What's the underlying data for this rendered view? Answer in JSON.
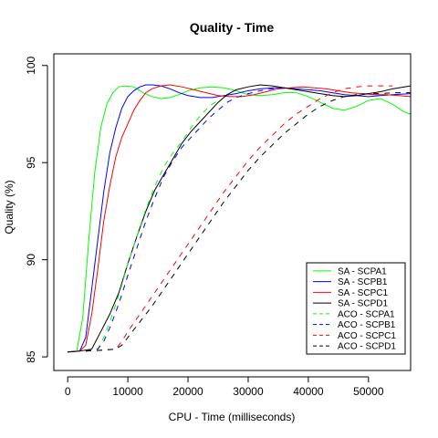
{
  "chart_data": {
    "type": "line",
    "title": "Quality - Time",
    "xlabel": "CPU - Time (milliseconds)",
    "ylabel": "Quality (%)",
    "xlim": [
      -2300,
      57000
    ],
    "ylim": [
      84.3,
      100.6
    ],
    "x_ticks": [
      0,
      10000,
      20000,
      30000,
      40000,
      50000
    ],
    "x_tick_labels": [
      "0",
      "10000",
      "20000",
      "30000",
      "40000",
      "50000"
    ],
    "y_ticks": [
      85,
      90,
      95,
      100
    ],
    "y_tick_labels": [
      "85",
      "90",
      "95",
      "100"
    ],
    "grid": false,
    "legend_position": "bottom-right",
    "series": [
      {
        "name": "SA - SCPA1",
        "color": "#00ff00",
        "dash": "solid",
        "points": [
          [
            0,
            85.25
          ],
          [
            1500,
            85.3
          ],
          [
            2500,
            87
          ],
          [
            3500,
            91
          ],
          [
            4500,
            94.5
          ],
          [
            5500,
            96.8
          ],
          [
            6500,
            98
          ],
          [
            7500,
            98.6
          ],
          [
            8500,
            98.9
          ],
          [
            9500,
            98.95
          ],
          [
            11000,
            98.9
          ],
          [
            12500,
            98.6
          ],
          [
            14000,
            98.4
          ],
          [
            15500,
            98.3
          ],
          [
            17000,
            98.35
          ],
          [
            18500,
            98.5
          ],
          [
            20000,
            98.7
          ],
          [
            22000,
            98.85
          ],
          [
            24000,
            98.9
          ],
          [
            26000,
            98.85
          ],
          [
            28000,
            98.7
          ],
          [
            30000,
            98.5
          ],
          [
            32000,
            98.45
          ],
          [
            34000,
            98.5
          ],
          [
            36000,
            98.6
          ],
          [
            38000,
            98.6
          ],
          [
            40000,
            98.4
          ],
          [
            42000,
            98.1
          ],
          [
            44000,
            97.8
          ],
          [
            46000,
            97.7
          ],
          [
            48000,
            97.9
          ],
          [
            50000,
            98.2
          ],
          [
            52000,
            98.3
          ],
          [
            54000,
            98.0
          ],
          [
            56000,
            97.6
          ],
          [
            57000,
            97.5
          ]
        ]
      },
      {
        "name": "SA - SCPB1",
        "color": "#0000ff",
        "dash": "solid",
        "points": [
          [
            0,
            85.25
          ],
          [
            2000,
            85.3
          ],
          [
            3000,
            86
          ],
          [
            4000,
            88.5
          ],
          [
            5000,
            91
          ],
          [
            6000,
            93.5
          ],
          [
            7000,
            95.5
          ],
          [
            8000,
            96.8
          ],
          [
            9000,
            97.8
          ],
          [
            10000,
            98.4
          ],
          [
            11000,
            98.7
          ],
          [
            12000,
            98.9
          ],
          [
            13000,
            99.0
          ],
          [
            14000,
            99.0
          ],
          [
            15500,
            98.95
          ],
          [
            17000,
            98.8
          ],
          [
            18500,
            98.6
          ],
          [
            20000,
            98.45
          ],
          [
            22000,
            98.35
          ],
          [
            24000,
            98.35
          ],
          [
            26000,
            98.45
          ],
          [
            28000,
            98.55
          ],
          [
            30000,
            98.7
          ],
          [
            32000,
            98.8
          ],
          [
            34000,
            98.85
          ],
          [
            36000,
            98.85
          ],
          [
            38000,
            98.8
          ],
          [
            40000,
            98.75
          ],
          [
            42000,
            98.7
          ],
          [
            44000,
            98.6
          ],
          [
            46000,
            98.5
          ],
          [
            48000,
            98.45
          ],
          [
            50000,
            98.4
          ],
          [
            52000,
            98.45
          ],
          [
            54000,
            98.5
          ],
          [
            57000,
            98.55
          ]
        ]
      },
      {
        "name": "SA - SCPC1",
        "color": "#ff0000",
        "dash": "solid",
        "points": [
          [
            0,
            85.25
          ],
          [
            2000,
            85.3
          ],
          [
            3000,
            85.6
          ],
          [
            4000,
            87.2
          ],
          [
            5000,
            89.5
          ],
          [
            6000,
            92
          ],
          [
            7000,
            93.8
          ],
          [
            8000,
            95.3
          ],
          [
            9000,
            96.3
          ],
          [
            10000,
            97.0
          ],
          [
            11000,
            97.7
          ],
          [
            12000,
            98.2
          ],
          [
            13000,
            98.6
          ],
          [
            14000,
            98.8
          ],
          [
            15500,
            98.95
          ],
          [
            17000,
            99.0
          ],
          [
            19000,
            98.9
          ],
          [
            21000,
            98.75
          ],
          [
            23000,
            98.6
          ],
          [
            25000,
            98.45
          ],
          [
            27000,
            98.4
          ],
          [
            29000,
            98.4
          ],
          [
            31000,
            98.5
          ],
          [
            33000,
            98.65
          ],
          [
            35000,
            98.8
          ],
          [
            37000,
            98.85
          ],
          [
            39000,
            98.9
          ],
          [
            41000,
            98.85
          ],
          [
            43000,
            98.8
          ],
          [
            45000,
            98.7
          ],
          [
            47000,
            98.6
          ],
          [
            49000,
            98.55
          ],
          [
            51000,
            98.5
          ],
          [
            53000,
            98.5
          ],
          [
            55000,
            98.45
          ],
          [
            57000,
            98.4
          ]
        ]
      },
      {
        "name": "SA - SCPD1",
        "color": "#000000",
        "dash": "solid",
        "points": [
          [
            0,
            85.25
          ],
          [
            2000,
            85.3
          ],
          [
            4000,
            85.4
          ],
          [
            5500,
            86.3
          ],
          [
            7000,
            87.2
          ],
          [
            8500,
            88.3
          ],
          [
            10000,
            89.8
          ],
          [
            11500,
            91.2
          ],
          [
            13000,
            92.5
          ],
          [
            14500,
            93.6
          ],
          [
            16000,
            94.4
          ],
          [
            17500,
            95.2
          ],
          [
            19000,
            96.0
          ],
          [
            20500,
            96.6
          ],
          [
            22000,
            97.1
          ],
          [
            23500,
            97.6
          ],
          [
            25000,
            98.1
          ],
          [
            26500,
            98.5
          ],
          [
            28000,
            98.75
          ],
          [
            30000,
            98.9
          ],
          [
            32000,
            99.0
          ],
          [
            34000,
            98.95
          ],
          [
            36000,
            98.85
          ],
          [
            38000,
            98.75
          ],
          [
            40000,
            98.65
          ],
          [
            42000,
            98.55
          ],
          [
            44000,
            98.45
          ],
          [
            46000,
            98.4
          ],
          [
            48000,
            98.45
          ],
          [
            50000,
            98.55
          ],
          [
            52000,
            98.65
          ],
          [
            54000,
            98.8
          ],
          [
            57000,
            98.95
          ]
        ]
      },
      {
        "name": "ACO - SCPA1",
        "color": "#00ff00",
        "dash": "dashed",
        "points": [
          [
            3000,
            85.3
          ],
          [
            4000,
            85.35
          ],
          [
            5000,
            85.4
          ],
          [
            6000,
            86.0
          ],
          [
            7000,
            86.8
          ],
          [
            8000,
            87.7
          ],
          [
            9000,
            88.7
          ],
          [
            10000,
            89.8
          ],
          [
            11500,
            91.2
          ],
          [
            13000,
            92.6
          ],
          [
            14500,
            93.8
          ],
          [
            16000,
            94.8
          ],
          [
            17500,
            95.5
          ],
          [
            19000,
            96.1
          ],
          [
            20500,
            96.8
          ],
          [
            22000,
            97.4
          ],
          [
            23500,
            97.9
          ],
          [
            25000,
            98.2
          ]
        ]
      },
      {
        "name": "ACO - SCPB1",
        "color": "#0000ff",
        "dash": "dashed",
        "points": [
          [
            3000,
            85.3
          ],
          [
            4000,
            85.35
          ],
          [
            5000,
            85.4
          ],
          [
            6000,
            85.8
          ],
          [
            7000,
            86.5
          ],
          [
            8000,
            87.3
          ],
          [
            9000,
            88.2
          ],
          [
            10000,
            89.2
          ],
          [
            11500,
            90.6
          ],
          [
            13000,
            92.0
          ],
          [
            14500,
            93.2
          ],
          [
            16000,
            94.3
          ],
          [
            17500,
            95.1
          ],
          [
            19000,
            95.8
          ],
          [
            20500,
            96.3
          ],
          [
            22000,
            96.8
          ],
          [
            23500,
            97.3
          ],
          [
            25000,
            97.7
          ],
          [
            26500,
            98.1
          ],
          [
            28000,
            98.35
          ],
          [
            30000,
            98.55
          ],
          [
            32000,
            98.7
          ],
          [
            34000,
            98.8
          ],
          [
            36000,
            98.85
          ]
        ]
      },
      {
        "name": "ACO - SCPC1",
        "color": "#ff0000",
        "dash": "dashed",
        "points": [
          [
            3000,
            85.3
          ],
          [
            6000,
            85.35
          ],
          [
            8000,
            85.4
          ],
          [
            9000,
            85.8
          ],
          [
            10000,
            86.3
          ],
          [
            12000,
            87.2
          ],
          [
            14000,
            88.1
          ],
          [
            16000,
            89.0
          ],
          [
            18000,
            89.9
          ],
          [
            20000,
            90.8
          ],
          [
            22000,
            91.7
          ],
          [
            24000,
            92.6
          ],
          [
            26000,
            93.5
          ],
          [
            28000,
            94.3
          ],
          [
            30000,
            95.1
          ],
          [
            32000,
            95.8
          ],
          [
            34000,
            96.4
          ],
          [
            36000,
            97.0
          ],
          [
            38000,
            97.5
          ],
          [
            40000,
            97.9
          ],
          [
            42000,
            98.3
          ],
          [
            44000,
            98.6
          ],
          [
            46000,
            98.8
          ],
          [
            48000,
            98.9
          ],
          [
            50000,
            98.95
          ],
          [
            52000,
            98.95
          ],
          [
            54000,
            98.95
          ]
        ]
      },
      {
        "name": "ACO - SCPD1",
        "color": "#000000",
        "dash": "dashed",
        "points": [
          [
            3000,
            85.3
          ],
          [
            6000,
            85.35
          ],
          [
            8000,
            85.4
          ],
          [
            9000,
            85.6
          ],
          [
            10000,
            86.0
          ],
          [
            12000,
            86.8
          ],
          [
            14000,
            87.6
          ],
          [
            16000,
            88.5
          ],
          [
            18000,
            89.4
          ],
          [
            20000,
            90.3
          ],
          [
            22000,
            91.2
          ],
          [
            24000,
            92.1
          ],
          [
            26000,
            93.0
          ],
          [
            28000,
            93.8
          ],
          [
            30000,
            94.6
          ],
          [
            32000,
            95.3
          ],
          [
            34000,
            95.9
          ],
          [
            36000,
            96.5
          ],
          [
            38000,
            97.0
          ],
          [
            40000,
            97.5
          ],
          [
            42000,
            97.9
          ],
          [
            44000,
            98.2
          ],
          [
            46000,
            98.4
          ],
          [
            48000,
            98.5
          ],
          [
            50000,
            98.55
          ],
          [
            52000,
            98.55
          ],
          [
            54000,
            98.6
          ],
          [
            57000,
            98.6
          ]
        ]
      }
    ]
  }
}
